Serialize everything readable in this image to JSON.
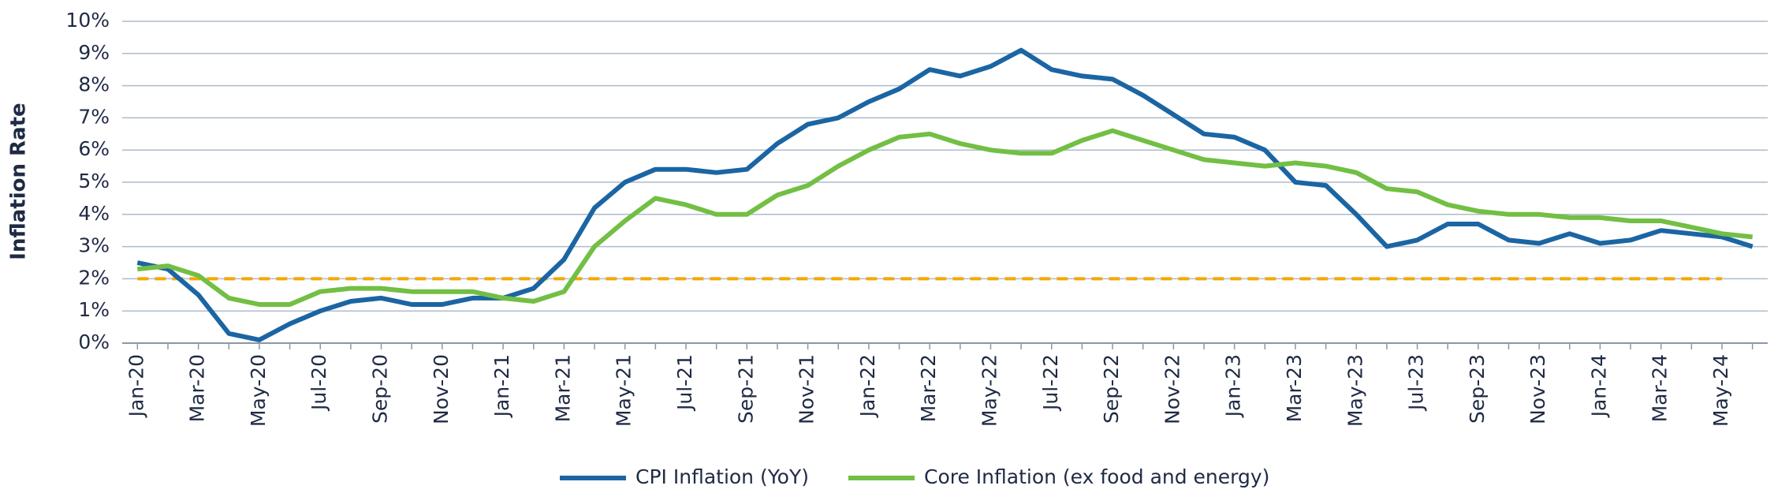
{
  "chart_data": {
    "type": "line",
    "y_label": "Inflation Rate",
    "categories": [
      "Jan-20",
      null,
      "Mar-20",
      null,
      "May-20",
      null,
      "Jul-20",
      null,
      "Sep-20",
      null,
      "Nov-20",
      null,
      "Jan-21",
      null,
      "Mar-21",
      null,
      "May-21",
      null,
      "Jul-21",
      null,
      "Sep-21",
      null,
      "Nov-21",
      null,
      "Jan-22",
      null,
      "Mar-22",
      null,
      "May-22",
      null,
      "Jul-22",
      null,
      "Sep-22",
      null,
      "Nov-22",
      null,
      "Jan-23",
      null,
      "Mar-23",
      null,
      "May-23",
      null,
      "Jul-23",
      null,
      "Sep-23",
      null,
      "Nov-23",
      null,
      "Jan-24",
      null,
      "Mar-24",
      null,
      "May-24",
      null
    ],
    "series": [
      {
        "name": "CPI Inflation (YoY)",
        "color": "#1b65a3",
        "values": [
          2.5,
          2.3,
          1.5,
          0.3,
          0.1,
          0.6,
          1.0,
          1.3,
          1.4,
          1.2,
          1.2,
          1.4,
          1.4,
          1.7,
          2.6,
          4.2,
          5.0,
          5.4,
          5.4,
          5.3,
          5.4,
          6.2,
          6.8,
          7.0,
          7.5,
          7.9,
          8.5,
          8.3,
          8.6,
          9.1,
          8.5,
          8.3,
          8.2,
          7.7,
          7.1,
          6.5,
          6.4,
          6.0,
          5.0,
          4.9,
          4.0,
          3.0,
          3.2,
          3.7,
          3.7,
          3.2,
          3.1,
          3.4,
          3.1,
          3.2,
          3.5,
          3.4,
          3.3,
          3.0
        ]
      },
      {
        "name": "Core Inflation (ex food and energy)",
        "color": "#72bf44",
        "values": [
          2.3,
          2.4,
          2.1,
          1.4,
          1.2,
          1.2,
          1.6,
          1.7,
          1.7,
          1.6,
          1.6,
          1.6,
          1.4,
          1.3,
          1.6,
          3.0,
          3.8,
          4.5,
          4.3,
          4.0,
          4.0,
          4.6,
          4.9,
          5.5,
          6.0,
          6.4,
          6.5,
          6.2,
          6.0,
          5.9,
          5.9,
          6.3,
          6.6,
          6.3,
          6.0,
          5.7,
          5.6,
          5.5,
          5.6,
          5.5,
          5.3,
          4.8,
          4.7,
          4.3,
          4.1,
          4.0,
          4.0,
          3.9,
          3.9,
          3.8,
          3.8,
          3.6,
          3.4,
          3.3
        ]
      }
    ],
    "reference_line": {
      "value": 2,
      "color": "#f5a800"
    },
    "ylim": [
      0,
      10
    ],
    "yticks": [
      {
        "value": 0,
        "label": "0%"
      },
      {
        "value": 1,
        "label": "1%"
      },
      {
        "value": 2,
        "label": "2%"
      },
      {
        "value": 3,
        "label": "3%"
      },
      {
        "value": 4,
        "label": "4%"
      },
      {
        "value": 5,
        "label": "5%"
      },
      {
        "value": 6,
        "label": "6%"
      },
      {
        "value": 7,
        "label": "7%"
      },
      {
        "value": 8,
        "label": "8%"
      },
      {
        "value": 9,
        "label": "9%"
      },
      {
        "value": 10,
        "label": "10%"
      }
    ],
    "grid": true
  }
}
